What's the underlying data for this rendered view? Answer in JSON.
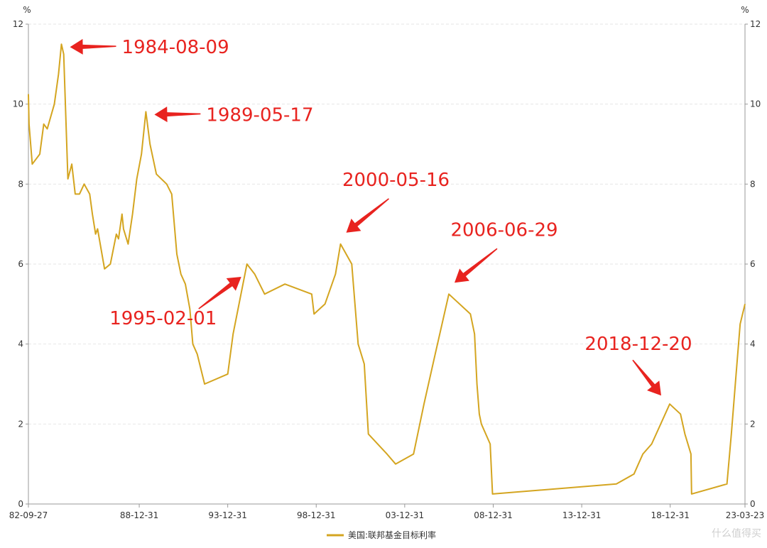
{
  "chart_data": {
    "type": "line",
    "title": "",
    "xlabel": "",
    "ylabel": "%",
    "y_unit_left": "%",
    "y_unit_right": "%",
    "ylim": [
      0,
      12
    ],
    "y_ticks": [
      "0",
      "2",
      "4",
      "6",
      "8",
      "10",
      "12"
    ],
    "x_range": [
      "1982-09-27",
      "2023-03-23"
    ],
    "x_ticks": [
      {
        "label": "82-09-27",
        "date": "1982-09-27"
      },
      {
        "label": "88-12-31",
        "date": "1988-12-31"
      },
      {
        "label": "93-12-31",
        "date": "1993-12-31"
      },
      {
        "label": "98-12-31",
        "date": "1998-12-31"
      },
      {
        "label": "03-12-31",
        "date": "2003-12-31"
      },
      {
        "label": "08-12-31",
        "date": "2008-12-31"
      },
      {
        "label": "13-12-31",
        "date": "2013-12-31"
      },
      {
        "label": "18-12-31",
        "date": "2018-12-31"
      },
      {
        "label": "23-03-23",
        "date": "2023-03-23"
      }
    ],
    "grid": true,
    "legend_position": "bottom-center",
    "series": [
      {
        "name": "美国:联邦基金目标利率",
        "color": "#d4a520",
        "points": [
          [
            "1982-09-27",
            10.25
          ],
          [
            "1982-10-10",
            9.5
          ],
          [
            "1982-12-15",
            8.5
          ],
          [
            "1983-05-20",
            8.75
          ],
          [
            "1983-08-10",
            9.5
          ],
          [
            "1983-10-20",
            9.38
          ],
          [
            "1984-03-15",
            10.0
          ],
          [
            "1984-06-10",
            10.75
          ],
          [
            "1984-08-09",
            11.5
          ],
          [
            "1984-09-25",
            11.25
          ],
          [
            "1984-12-20",
            8.13
          ],
          [
            "1985-03-10",
            8.5
          ],
          [
            "1985-05-20",
            7.75
          ],
          [
            "1985-08-15",
            7.75
          ],
          [
            "1985-11-20",
            8.0
          ],
          [
            "1986-03-15",
            7.75
          ],
          [
            "1986-05-10",
            7.25
          ],
          [
            "1986-07-15",
            6.75
          ],
          [
            "1986-08-25",
            6.88
          ],
          [
            "1987-01-15",
            5.88
          ],
          [
            "1987-05-15",
            6.0
          ],
          [
            "1987-09-15",
            6.75
          ],
          [
            "1987-10-30",
            6.63
          ],
          [
            "1988-01-10",
            7.25
          ],
          [
            "1988-02-10",
            6.88
          ],
          [
            "1988-05-15",
            6.5
          ],
          [
            "1988-08-15",
            7.25
          ],
          [
            "1988-11-10",
            8.13
          ],
          [
            "1989-02-15",
            8.75
          ],
          [
            "1989-05-17",
            9.81
          ],
          [
            "1989-08-10",
            9.0
          ],
          [
            "1989-12-20",
            8.25
          ],
          [
            "1990-07-20",
            8.0
          ],
          [
            "1990-11-01",
            7.75
          ],
          [
            "1991-02-15",
            6.25
          ],
          [
            "1991-05-10",
            5.75
          ],
          [
            "1991-08-10",
            5.5
          ],
          [
            "1991-11-10",
            4.88
          ],
          [
            "1992-01-10",
            4.0
          ],
          [
            "1992-04-10",
            3.75
          ],
          [
            "1992-09-10",
            3.0
          ],
          [
            "1993-12-31",
            3.25
          ],
          [
            "1994-04-20",
            4.25
          ],
          [
            "1995-02-01",
            6.0
          ],
          [
            "1995-07-10",
            5.75
          ],
          [
            "1996-01-31",
            5.25
          ],
          [
            "1997-03-25",
            5.5
          ],
          [
            "1998-09-29",
            5.25
          ],
          [
            "1998-11-17",
            4.75
          ],
          [
            "1999-06-30",
            5.0
          ],
          [
            "2000-02-02",
            5.75
          ],
          [
            "2000-05-16",
            6.5
          ],
          [
            "2001-01-03",
            6.0
          ],
          [
            "2001-05-15",
            4.0
          ],
          [
            "2001-09-17",
            3.5
          ],
          [
            "2001-12-11",
            1.75
          ],
          [
            "2002-12-31",
            1.25
          ],
          [
            "2003-06-25",
            1.0
          ],
          [
            "2004-06-30",
            1.25
          ],
          [
            "2005-02-01",
            2.5
          ],
          [
            "2005-09-20",
            3.75
          ],
          [
            "2006-06-29",
            5.25
          ],
          [
            "2007-09-18",
            4.75
          ],
          [
            "2007-12-11",
            4.25
          ],
          [
            "2008-01-30",
            3.0
          ],
          [
            "2008-03-18",
            2.25
          ],
          [
            "2008-04-30",
            2.0
          ],
          [
            "2008-10-29",
            1.5
          ],
          [
            "2008-12-16",
            0.25
          ],
          [
            "2015-12-16",
            0.5
          ],
          [
            "2016-12-14",
            0.75
          ],
          [
            "2017-03-15",
            1.0
          ],
          [
            "2017-06-14",
            1.25
          ],
          [
            "2017-12-13",
            1.5
          ],
          [
            "2018-12-20",
            2.5
          ],
          [
            "2019-07-31",
            2.25
          ],
          [
            "2019-10-30",
            1.75
          ],
          [
            "2020-03-03",
            1.25
          ],
          [
            "2020-03-16",
            0.25
          ],
          [
            "2022-03-16",
            0.5
          ],
          [
            "2022-06-15",
            1.75
          ],
          [
            "2022-09-21",
            3.25
          ],
          [
            "2022-12-14",
            4.5
          ],
          [
            "2023-03-23",
            5.0
          ]
        ]
      }
    ],
    "annotations": [
      {
        "label": "1984-08-09",
        "date": "1984-08-09",
        "value": 11.5,
        "arrow_from": "right"
      },
      {
        "label": "1989-05-17",
        "date": "1989-05-17",
        "value": 9.81,
        "arrow_from": "right"
      },
      {
        "label": "1995-02-01",
        "date": "1995-02-01",
        "value": 6.0,
        "arrow_from": "lower-left"
      },
      {
        "label": "2000-05-16",
        "date": "2000-05-16",
        "value": 6.5,
        "arrow_from": "upper-right"
      },
      {
        "label": "2006-06-29",
        "date": "2006-06-29",
        "value": 5.25,
        "arrow_from": "upper-right"
      },
      {
        "label": "2018-12-20",
        "date": "2018-12-20",
        "value": 2.5,
        "arrow_from": "upper-left"
      }
    ],
    "annotation_color": "#e8231f"
  },
  "watermark": "什么值得买"
}
